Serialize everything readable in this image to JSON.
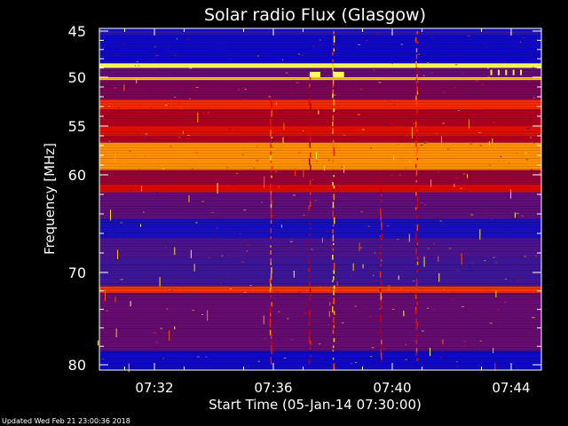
{
  "chart_data": {
    "type": "heatmap",
    "title": "Solar radio Flux (Glasgow)",
    "xlabel": "Start Time (05-Jan-14 07:30:00)",
    "ylabel": "Frequency [MHz]",
    "x_unit": "minutes after 07:30:00",
    "xlim": [
      0,
      14.5
    ],
    "ylim": [
      45,
      80
    ],
    "y_inverted": true,
    "y_scale": "nonlinear",
    "x_ticks": [
      {
        "value": 2,
        "label": "07:32"
      },
      {
        "value": 6,
        "label": "07:36"
      },
      {
        "value": 10,
        "label": "07:40"
      },
      {
        "value": 14,
        "label": "07:44"
      }
    ],
    "y_ticks": [
      {
        "value": 45,
        "label": "45"
      },
      {
        "value": 50,
        "label": "50"
      },
      {
        "value": 55,
        "label": "55"
      },
      {
        "value": 60,
        "label": "60"
      },
      {
        "value": 70,
        "label": "70"
      },
      {
        "value": 80,
        "label": "80"
      }
    ],
    "y_minor_ticks": [
      46,
      47,
      48,
      49,
      51,
      52,
      53,
      54,
      56,
      57,
      58,
      59,
      62,
      64,
      66,
      68,
      72,
      74,
      76,
      78
    ],
    "frequency_bands": [
      {
        "f1": 45.0,
        "f2": 45.4,
        "level": 0.15
      },
      {
        "f1": 45.4,
        "f2": 48.5,
        "level": 0.05
      },
      {
        "f1": 48.5,
        "f2": 49.0,
        "level": 1.0
      },
      {
        "f1": 49.0,
        "f2": 50.0,
        "level": 0.32
      },
      {
        "f1": 50.0,
        "f2": 50.3,
        "level": 0.85
      },
      {
        "f1": 50.3,
        "f2": 52.3,
        "level": 0.38
      },
      {
        "f1": 52.3,
        "f2": 53.3,
        "level": 0.7
      },
      {
        "f1": 53.3,
        "f2": 55.0,
        "level": 0.5
      },
      {
        "f1": 55.0,
        "f2": 56.0,
        "level": 0.62
      },
      {
        "f1": 56.0,
        "f2": 56.7,
        "level": 0.5
      },
      {
        "f1": 56.7,
        "f2": 59.5,
        "level": 0.8
      },
      {
        "f1": 59.5,
        "f2": 61.0,
        "level": 0.45
      },
      {
        "f1": 61.0,
        "f2": 61.8,
        "level": 0.6
      },
      {
        "f1": 61.8,
        "f2": 64.5,
        "level": 0.3
      },
      {
        "f1": 64.5,
        "f2": 66.5,
        "level": 0.08
      },
      {
        "f1": 66.5,
        "f2": 68.5,
        "level": 0.24
      },
      {
        "f1": 68.5,
        "f2": 71.5,
        "level": 0.2
      },
      {
        "f1": 71.5,
        "f2": 72.2,
        "level": 0.72
      },
      {
        "f1": 72.2,
        "f2": 78.5,
        "level": 0.32
      },
      {
        "f1": 78.5,
        "f2": 80.0,
        "level": 0.05
      }
    ],
    "bursts": [
      {
        "t": 5.9,
        "f1": 52,
        "f2": 80,
        "level": 0.85
      },
      {
        "t": 7.2,
        "f1": 50,
        "f2": 80,
        "level": 0.7
      },
      {
        "t": 8.0,
        "f1": 45,
        "f2": 80,
        "level": 0.95
      },
      {
        "t": 9.6,
        "f1": 60,
        "f2": 80,
        "level": 0.75
      },
      {
        "t": 10.8,
        "f1": 45,
        "f2": 80,
        "level": 0.8
      }
    ],
    "hot_spots": [
      {
        "t": 7.4,
        "f": 49.8,
        "level": 1.0
      },
      {
        "t": 8.2,
        "f": 49.8,
        "level": 1.0
      }
    ],
    "colormap": [
      "#0000d8",
      "#2a1aa8",
      "#5a1080",
      "#8a0040",
      "#d00000",
      "#ff3000",
      "#ffd000",
      "#ffff60"
    ]
  },
  "footer": "Updated Wed Feb 21 23:00:36 2018"
}
